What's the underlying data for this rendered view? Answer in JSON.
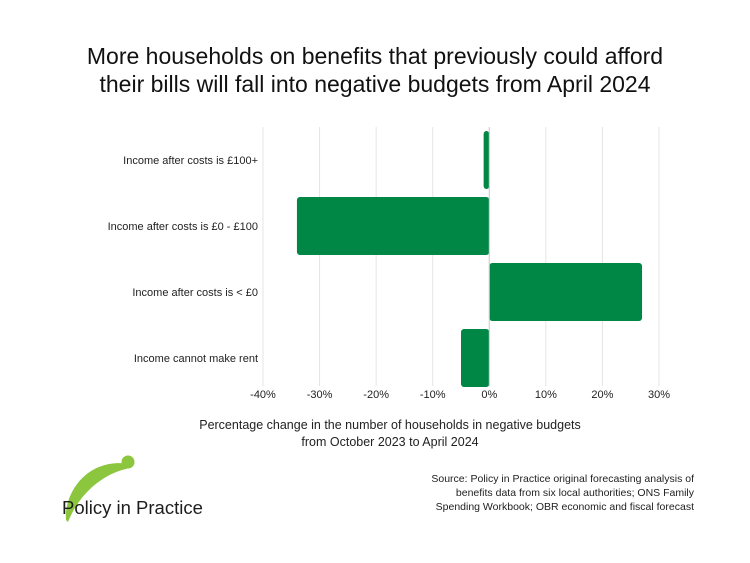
{
  "chart_data": {
    "type": "bar",
    "orientation": "horizontal",
    "title": [
      "More households on benefits that previously could afford",
      "their bills will fall into negative budgets from April 2024"
    ],
    "categories": [
      "Income after costs is £100+",
      "Income after costs is £0 - £100",
      "Income after costs is < £0",
      "Income cannot make rent"
    ],
    "values": [
      -1,
      -34,
      27,
      -5
    ],
    "xlim": [
      -40,
      30
    ],
    "xticks": [
      "-40%",
      "-30%",
      "-20%",
      "-10%",
      "0%",
      "10%",
      "20%",
      "30%"
    ],
    "xlabel": [
      "Percentage change in the number of households in negative budgets",
      "from October 2023 to April 2024"
    ],
    "grid": true,
    "bar_color": "#008746"
  },
  "source": [
    "Source: Policy in Practice original forecasting analysis of",
    "benefits data from six local authorities; ONS Family",
    "Spending Workbook; OBR economic and fiscal forecast"
  ],
  "logo": {
    "text": "Policy in Practice",
    "colors": {
      "accent": "#8cc63f",
      "text": "#1d1d1d"
    }
  }
}
